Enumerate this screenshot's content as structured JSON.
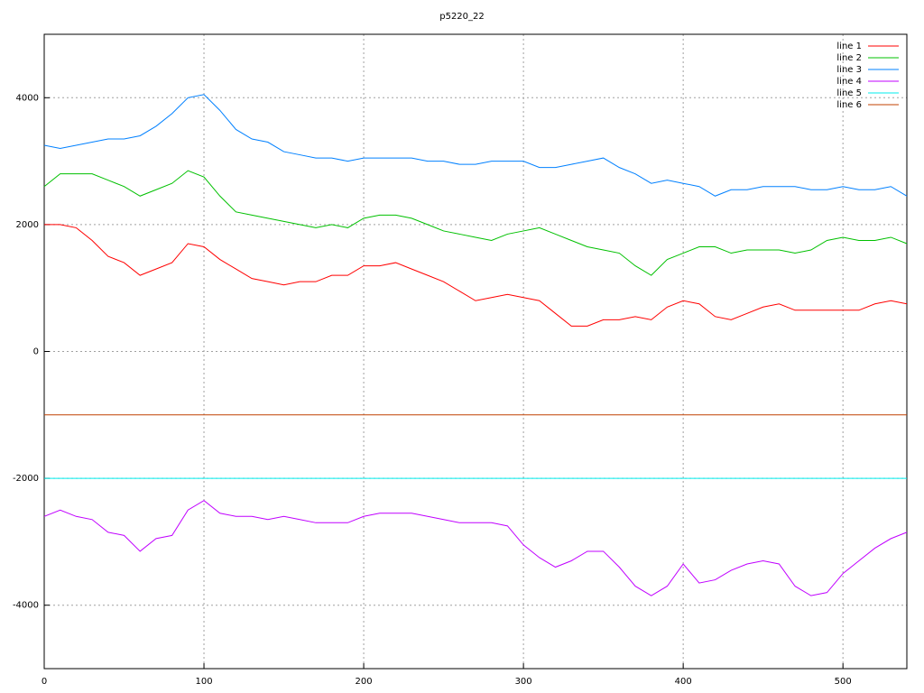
{
  "chart_data": {
    "type": "line",
    "title": "p5220_22",
    "x": [
      0,
      10,
      20,
      30,
      40,
      50,
      60,
      70,
      80,
      90,
      100,
      110,
      120,
      130,
      140,
      150,
      160,
      170,
      180,
      190,
      200,
      210,
      220,
      230,
      240,
      250,
      260,
      270,
      280,
      290,
      300,
      310,
      320,
      330,
      340,
      350,
      360,
      370,
      380,
      390,
      400,
      410,
      420,
      430,
      440,
      450,
      460,
      470,
      480,
      490,
      500,
      510,
      520,
      530,
      540
    ],
    "series": [
      {
        "name": "line 1",
        "color": "#ff0000",
        "values": [
          2000,
          2000,
          1950,
          1750,
          1500,
          1400,
          1200,
          1300,
          1400,
          1700,
          1650,
          1450,
          1300,
          1150,
          1100,
          1050,
          1100,
          1100,
          1200,
          1200,
          1350,
          1350,
          1400,
          1300,
          1200,
          1100,
          950,
          800,
          850,
          900,
          850,
          800,
          600,
          400,
          400,
          500,
          500,
          550,
          500,
          700,
          800,
          750,
          550,
          500,
          600,
          700,
          750,
          650,
          650,
          650,
          650,
          650,
          750,
          800,
          750
        ]
      },
      {
        "name": "line 2",
        "color": "#00c000",
        "values": [
          2600,
          2800,
          2800,
          2800,
          2700,
          2600,
          2450,
          2550,
          2650,
          2850,
          2750,
          2450,
          2200,
          2150,
          2100,
          2050,
          2000,
          1950,
          2000,
          1950,
          2100,
          2150,
          2150,
          2100,
          2000,
          1900,
          1850,
          1800,
          1750,
          1850,
          1900,
          1950,
          1850,
          1750,
          1650,
          1600,
          1550,
          1350,
          1200,
          1450,
          1550,
          1650,
          1650,
          1550,
          1600,
          1600,
          1600,
          1550,
          1600,
          1750,
          1800,
          1750,
          1750,
          1800,
          1700
        ]
      },
      {
        "name": "line 3",
        "color": "#0080ff",
        "values": [
          3250,
          3200,
          3250,
          3300,
          3350,
          3350,
          3400,
          3550,
          3750,
          4000,
          4050,
          3800,
          3500,
          3350,
          3300,
          3150,
          3100,
          3050,
          3050,
          3000,
          3050,
          3050,
          3050,
          3050,
          3000,
          3000,
          2950,
          2950,
          3000,
          3000,
          3000,
          2900,
          2900,
          2950,
          3000,
          3050,
          2900,
          2800,
          2650,
          2700,
          2650,
          2600,
          2450,
          2550,
          2550,
          2600,
          2600,
          2600,
          2550,
          2550,
          2600,
          2550,
          2550,
          2600,
          2450
        ]
      },
      {
        "name": "line 4",
        "color": "#c000ff",
        "values": [
          -2600,
          -2500,
          -2600,
          -2650,
          -2850,
          -2900,
          -3150,
          -2950,
          -2900,
          -2500,
          -2350,
          -2550,
          -2600,
          -2600,
          -2650,
          -2600,
          -2650,
          -2700,
          -2700,
          -2700,
          -2600,
          -2550,
          -2550,
          -2550,
          -2600,
          -2650,
          -2700,
          -2700,
          -2700,
          -2750,
          -3050,
          -3250,
          -3400,
          -3300,
          -3150,
          -3150,
          -3400,
          -3700,
          -3850,
          -3700,
          -3350,
          -3650,
          -3600,
          -3450,
          -3350,
          -3300,
          -3350,
          -3700,
          -3850,
          -3800,
          -3500,
          -3300,
          -3100,
          -2950,
          -2850
        ]
      },
      {
        "name": "line 5",
        "color": "#00eeee",
        "values": [
          -2000,
          -2000,
          -2000,
          -2000,
          -2000,
          -2000,
          -2000,
          -2000,
          -2000,
          -2000,
          -2000,
          -2000,
          -2000,
          -2000,
          -2000,
          -2000,
          -2000,
          -2000,
          -2000,
          -2000,
          -2000,
          -2000,
          -2000,
          -2000,
          -2000,
          -2000,
          -2000,
          -2000,
          -2000,
          -2000,
          -2000,
          -2000,
          -2000,
          -2000,
          -2000,
          -2000,
          -2000,
          -2000,
          -2000,
          -2000,
          -2000,
          -2000,
          -2000,
          -2000,
          -2000,
          -2000,
          -2000,
          -2000,
          -2000,
          -2000,
          -2000,
          -2000,
          -2000,
          -2000,
          -2000
        ]
      },
      {
        "name": "line 6",
        "color": "#c04000",
        "values": [
          -1000,
          -1000,
          -1000,
          -1000,
          -1000,
          -1000,
          -1000,
          -1000,
          -1000,
          -1000,
          -1000,
          -1000,
          -1000,
          -1000,
          -1000,
          -1000,
          -1000,
          -1000,
          -1000,
          -1000,
          -1000,
          -1000,
          -1000,
          -1000,
          -1000,
          -1000,
          -1000,
          -1000,
          -1000,
          -1000,
          -1000,
          -1000,
          -1000,
          -1000,
          -1000,
          -1000,
          -1000,
          -1000,
          -1000,
          -1000,
          -1000,
          -1000,
          -1000,
          -1000,
          -1000,
          -1000,
          -1000,
          -1000,
          -1000,
          -1000,
          -1000,
          -1000,
          -1000,
          -1000,
          -1000
        ]
      }
    ],
    "xlim": [
      0,
      540
    ],
    "xticks": [
      0,
      100,
      200,
      300,
      400,
      500
    ],
    "ylim": [
      -5000,
      5000
    ],
    "yticks": [
      -4000,
      -2000,
      0,
      2000,
      4000
    ],
    "grid": true,
    "legend": "top-right"
  }
}
